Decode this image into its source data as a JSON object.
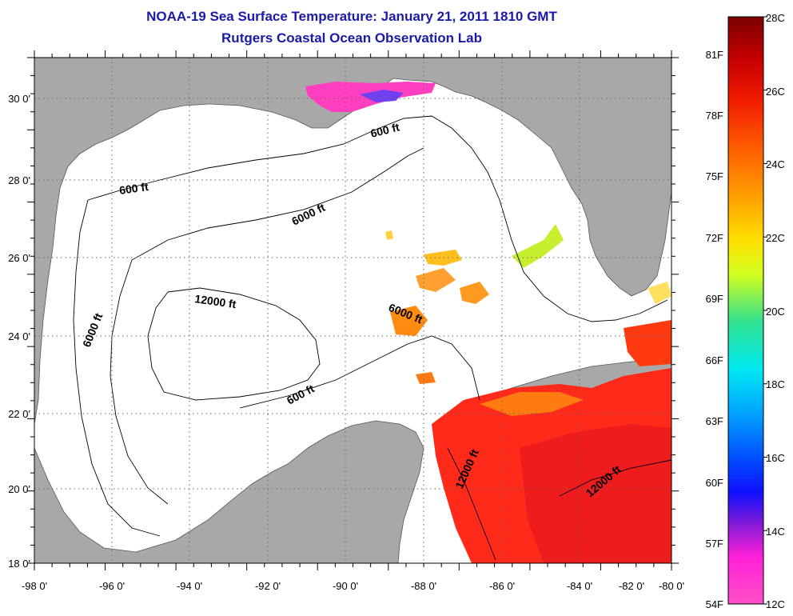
{
  "header": {
    "title": "NOAA-19 Sea Surface Temperature:  January 21, 2011 1810 GMT",
    "subtitle": "Rutgers Coastal Ocean Observation Lab"
  },
  "map": {
    "lon_ticks": [
      "-98 0'",
      "-96 0'",
      "-94 0'",
      "-92 0'",
      "-90 0'",
      "-88 0'",
      "-86 0'",
      "-84 0'",
      "-82 0'",
      "-80 0'"
    ],
    "lat_ticks": [
      "30 0'",
      "28 0'",
      "26 0'",
      "24 0'",
      "22 0'",
      "20 0'",
      "18 0'"
    ],
    "contour_labels": [
      "600 ft",
      "600 ft",
      "6000 ft",
      "6000 ft",
      "12000 ft",
      "6000 ft",
      "600 ft",
      "12000 ft",
      "12000 ft"
    ],
    "colors": {
      "land": "#a8a8a8",
      "water": "#ffffff",
      "title": "#1a1aa8"
    }
  },
  "colorbar": {
    "celsius_labels": [
      "28C",
      "26C",
      "24C",
      "22C",
      "20C",
      "18C",
      "16C",
      "14C",
      "12C"
    ],
    "fahrenheit_labels": [
      "81F",
      "78F",
      "75F",
      "72F",
      "69F",
      "66F",
      "63F",
      "60F",
      "57F",
      "54F"
    ],
    "celsius_range": [
      12,
      28
    ]
  }
}
